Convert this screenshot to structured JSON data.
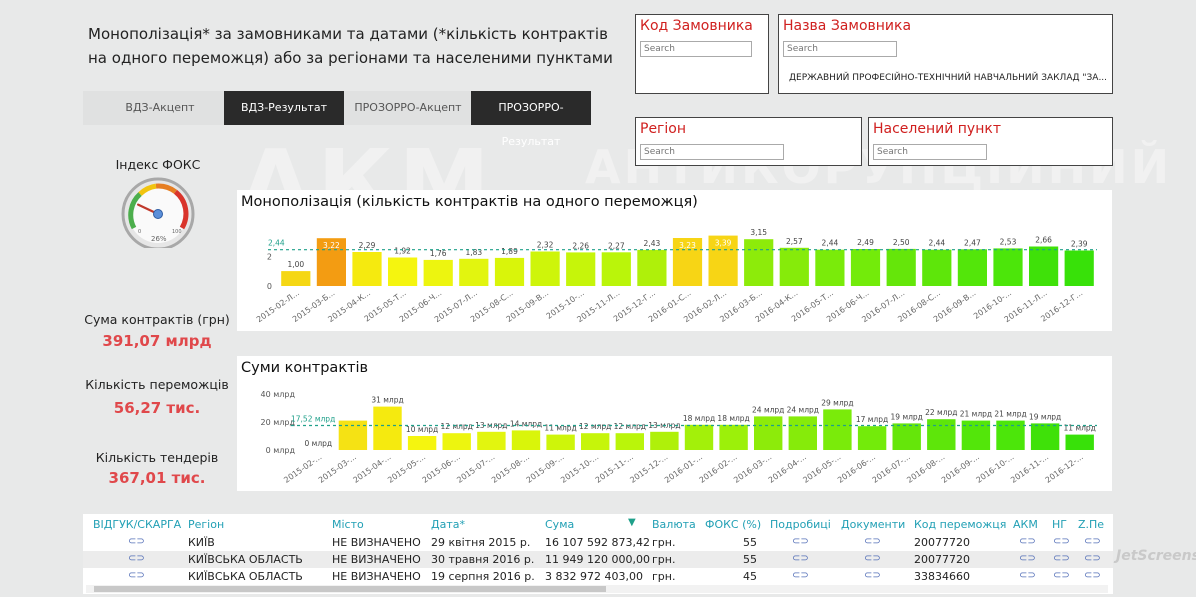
{
  "background_logo": {
    "main": "АКМ",
    "sub": "АНТИКОРУПЦІЙНИЙ"
  },
  "headline": "Монополізація* за замовниками та датами (*кількість контрактів на одного переможця) або за регіонами та населеними пунктами",
  "filters": {
    "customer_code": {
      "title": "Код Замовника",
      "placeholder": "Search"
    },
    "customer_name": {
      "title": "Назва Замовника",
      "placeholder": "Search",
      "item": "ДЕРЖАВНИЙ ПРОФЕСІЙНО-ТЕХНІЧНИЙ НАВЧАЛЬНИЙ ЗАКЛАД \"ЗА..."
    },
    "region": {
      "title": "Регіон",
      "placeholder": "Search"
    },
    "locality": {
      "title": "Населений пункт",
      "placeholder": "Search"
    }
  },
  "tabs": [
    "ВДЗ-Акцепт",
    "ВДЗ-Результат",
    "ПРОЗОРРО-Акцепт",
    "ПРОЗОРРО-Результат"
  ],
  "gauge": {
    "title": "Індекс ФОКС",
    "value_label": "26%",
    "min_label": "0",
    "max_label": "100",
    "value": 26
  },
  "kpis": {
    "sum_label": "Сума контрактів (грн)",
    "sum_value": "391,07 млрд",
    "winners_label": "Кількість переможців",
    "winners_value": "56,27 тис.",
    "tenders_label": "Кількість тендерів",
    "tenders_value": "367,01 тис."
  },
  "colors": {
    "accent_red": "#e0484b",
    "header_teal": "#22a0b5",
    "tab_dark": "#2a2a2a",
    "link_blue": "#5570b8",
    "avg_line": "#1fa08a"
  },
  "chart_data": [
    {
      "type": "bar",
      "title": "Монополізація (кількість контрактів на одного переможця)",
      "categories": [
        "2015-02-Л...",
        "2015-03-Б...",
        "2015-04-К...",
        "2015-05-Т...",
        "2015-06-Ч...",
        "2015-07-Л...",
        "2015-08-С...",
        "2015-09-В...",
        "2015-10-...",
        "2015-11-Л...",
        "2015-12-Г...",
        "2016-01-С...",
        "2016-02-Л...",
        "2016-03-Б...",
        "2016-04-К...",
        "2016-05-Т...",
        "2016-06-Ч...",
        "2016-07-Л...",
        "2016-08-С...",
        "2016-09-В...",
        "2016-10-...",
        "2016-11-Л...",
        "2016-12-Г..."
      ],
      "values": [
        1.0,
        3.22,
        2.29,
        1.92,
        1.76,
        1.83,
        1.89,
        2.32,
        2.26,
        2.27,
        2.43,
        3.23,
        3.39,
        3.15,
        2.57,
        2.44,
        2.49,
        2.5,
        2.44,
        2.47,
        2.53,
        2.66,
        2.39
      ],
      "value_labels": [
        "1,00",
        "3,22",
        "2,29",
        "1,92",
        "1,76",
        "1,83",
        "1,89",
        "2,32",
        "2,26",
        "2,27",
        "2,43",
        "3,23",
        "3,39",
        "3,15",
        "2,57",
        "2,44",
        "2,49",
        "2,50",
        "2,44",
        "2,47",
        "2,53",
        "2,66",
        "2,39"
      ],
      "highlighted": [
        1,
        11,
        12
      ],
      "ylim": [
        0,
        3.5
      ],
      "yticks": [
        "0",
        "2"
      ],
      "ytick_values": [
        0,
        2
      ],
      "average": {
        "value": 2.44,
        "label": "2,44"
      }
    },
    {
      "type": "bar",
      "title": "Суми контрактів",
      "categories": [
        "2015-02-...",
        "2015-03-...",
        "2015-04-...",
        "2015-05-...",
        "2015-06-...",
        "2015-07-...",
        "2015-08-...",
        "2015-09-...",
        "2015-10-...",
        "2015-11-...",
        "2015-12-...",
        "2016-01-...",
        "2016-02-...",
        "2016-03-...",
        "2016-04-...",
        "2016-05-...",
        "2016-06-...",
        "2016-07-...",
        "2016-08-...",
        "2016-09-...",
        "2016-10-...",
        "2016-11-...",
        "2016-12-..."
      ],
      "values": [
        0,
        21,
        31,
        10,
        12,
        13,
        14,
        11,
        12,
        12,
        13,
        18,
        18,
        24,
        24,
        29,
        17,
        19,
        22,
        21,
        21,
        19,
        11
      ],
      "value_labels": [
        "0 млрд",
        "",
        "31 млрд",
        "10 млрд",
        "12 млрд",
        "13 млрд",
        "14 млрд",
        "11 млрд",
        "12 млрд",
        "12 млрд",
        "13 млрд",
        "18 млрд",
        "18 млрд",
        "24 млрд",
        "24 млрд",
        "29 млрд",
        "17 млрд",
        "19 млрд",
        "22 млрд",
        "21 млрд",
        "21 млрд",
        "19 млрд",
        "11 млрд"
      ],
      "ylim": [
        0,
        45
      ],
      "yticks": [
        "0 млрд",
        "20 млрд",
        "40 млрд"
      ],
      "ytick_values": [
        0,
        20,
        40
      ],
      "average": {
        "value": 17.52,
        "label": "17,52 млрд"
      }
    }
  ],
  "table": {
    "headers": [
      "ВІДГУК/СКАРГА",
      "Регіон",
      "Місто",
      "Дата*",
      "Сума",
      "Валюта",
      "ФОКС (%)",
      "Подробиці",
      "Документи",
      "Код переможця",
      "АКМ",
      "НГ",
      "Z.Пе"
    ],
    "sort_indicator": "▼",
    "link_glyph": "⊂⊃",
    "rows": [
      {
        "region": "КИЇВ",
        "city": "НЕ ВИЗНАЧЕНО",
        "date": "29 квітня 2015 р.",
        "sum": "16 107 592 873,42",
        "currency": "грн.",
        "foks": "55",
        "winner": "20077720"
      },
      {
        "region": "КИЇВСЬКА ОБЛАСТЬ",
        "city": "НЕ ВИЗНАЧЕНО",
        "date": "30 травня 2016 р.",
        "sum": "11 949 120 000,00",
        "currency": "грн.",
        "foks": "55",
        "winner": "20077720"
      },
      {
        "region": "КИЇВСЬКА ОБЛАСТЬ",
        "city": "НЕ ВИЗНАЧЕНО",
        "date": "19 серпня 2016 р.",
        "sum": "3 832 972 403,00",
        "currency": "грн.",
        "foks": "45",
        "winner": "33834660"
      }
    ]
  },
  "watermark": "JetScreenshot"
}
